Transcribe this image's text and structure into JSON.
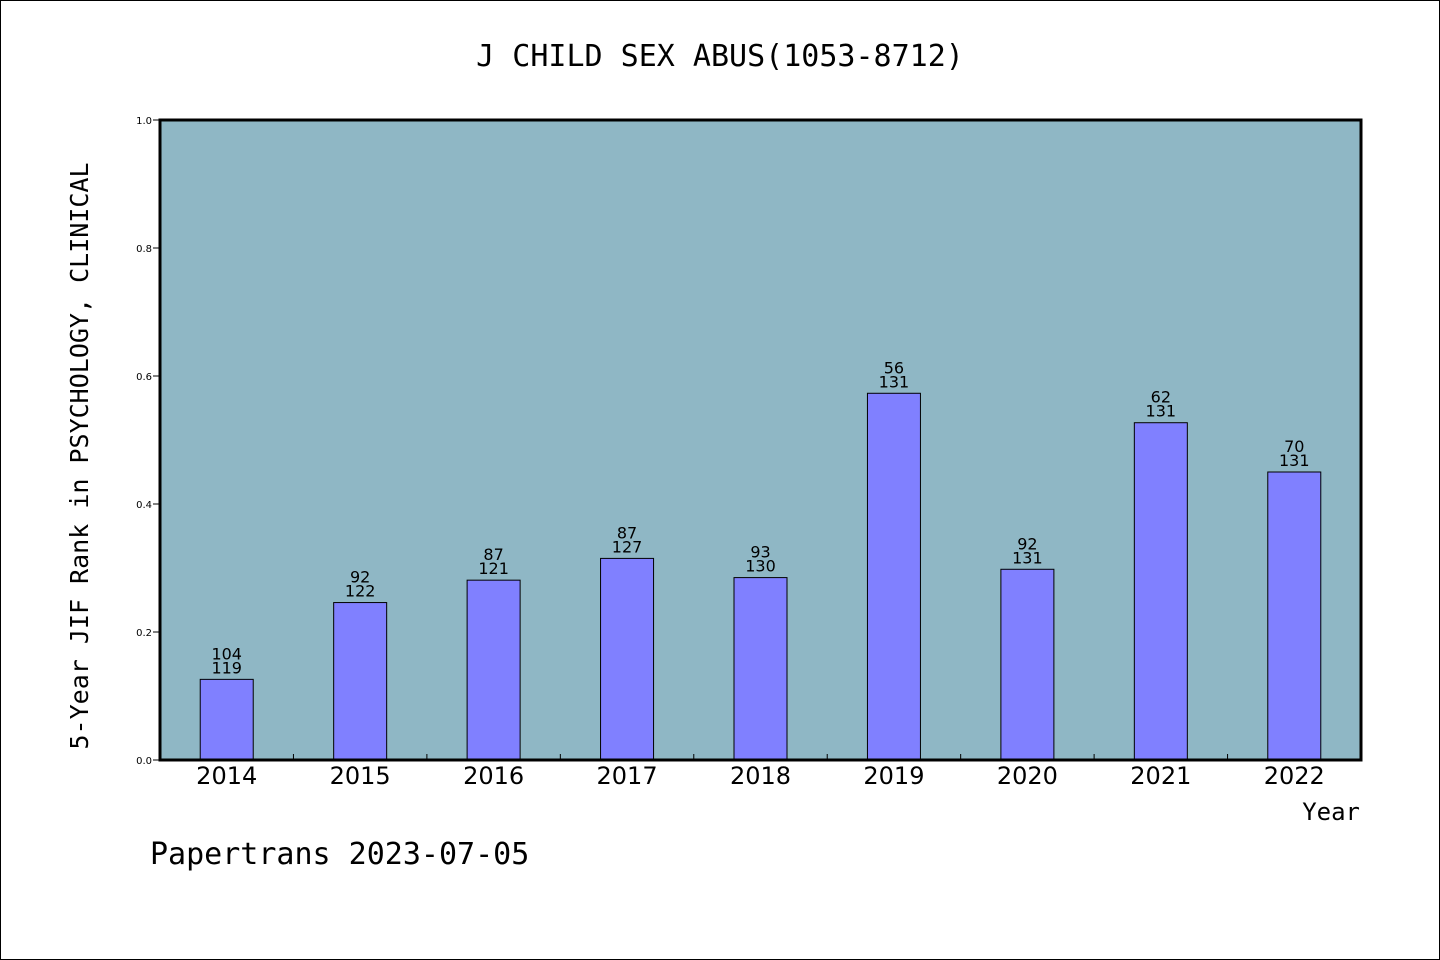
{
  "chart_data": {
    "type": "bar",
    "title": "J CHILD SEX ABUS(1053-8712)",
    "xlabel": "Year",
    "ylabel": "5-Year JIF Rank in PSYCHOLOGY, CLINICAL",
    "ylim": [
      0,
      1.0
    ],
    "yticks": [
      "0.0",
      "0.2",
      "0.4",
      "0.6",
      "0.8",
      "1.0"
    ],
    "categories": [
      "2014",
      "2015",
      "2016",
      "2017",
      "2018",
      "2019",
      "2020",
      "2021",
      "2022"
    ],
    "values": [
      0.126,
      0.246,
      0.281,
      0.315,
      0.285,
      0.573,
      0.298,
      0.527,
      0.45
    ],
    "rank": [
      "104",
      "92",
      "87",
      "87",
      "93",
      "56",
      "92",
      "62",
      "70"
    ],
    "total": [
      "119",
      "122",
      "121",
      "127",
      "130",
      "131",
      "131",
      "131",
      "131"
    ],
    "grid": false,
    "plot_background": "#8fb7c5",
    "bar_color": "#8080ff"
  },
  "footer": "Papertrans 2023-07-05"
}
